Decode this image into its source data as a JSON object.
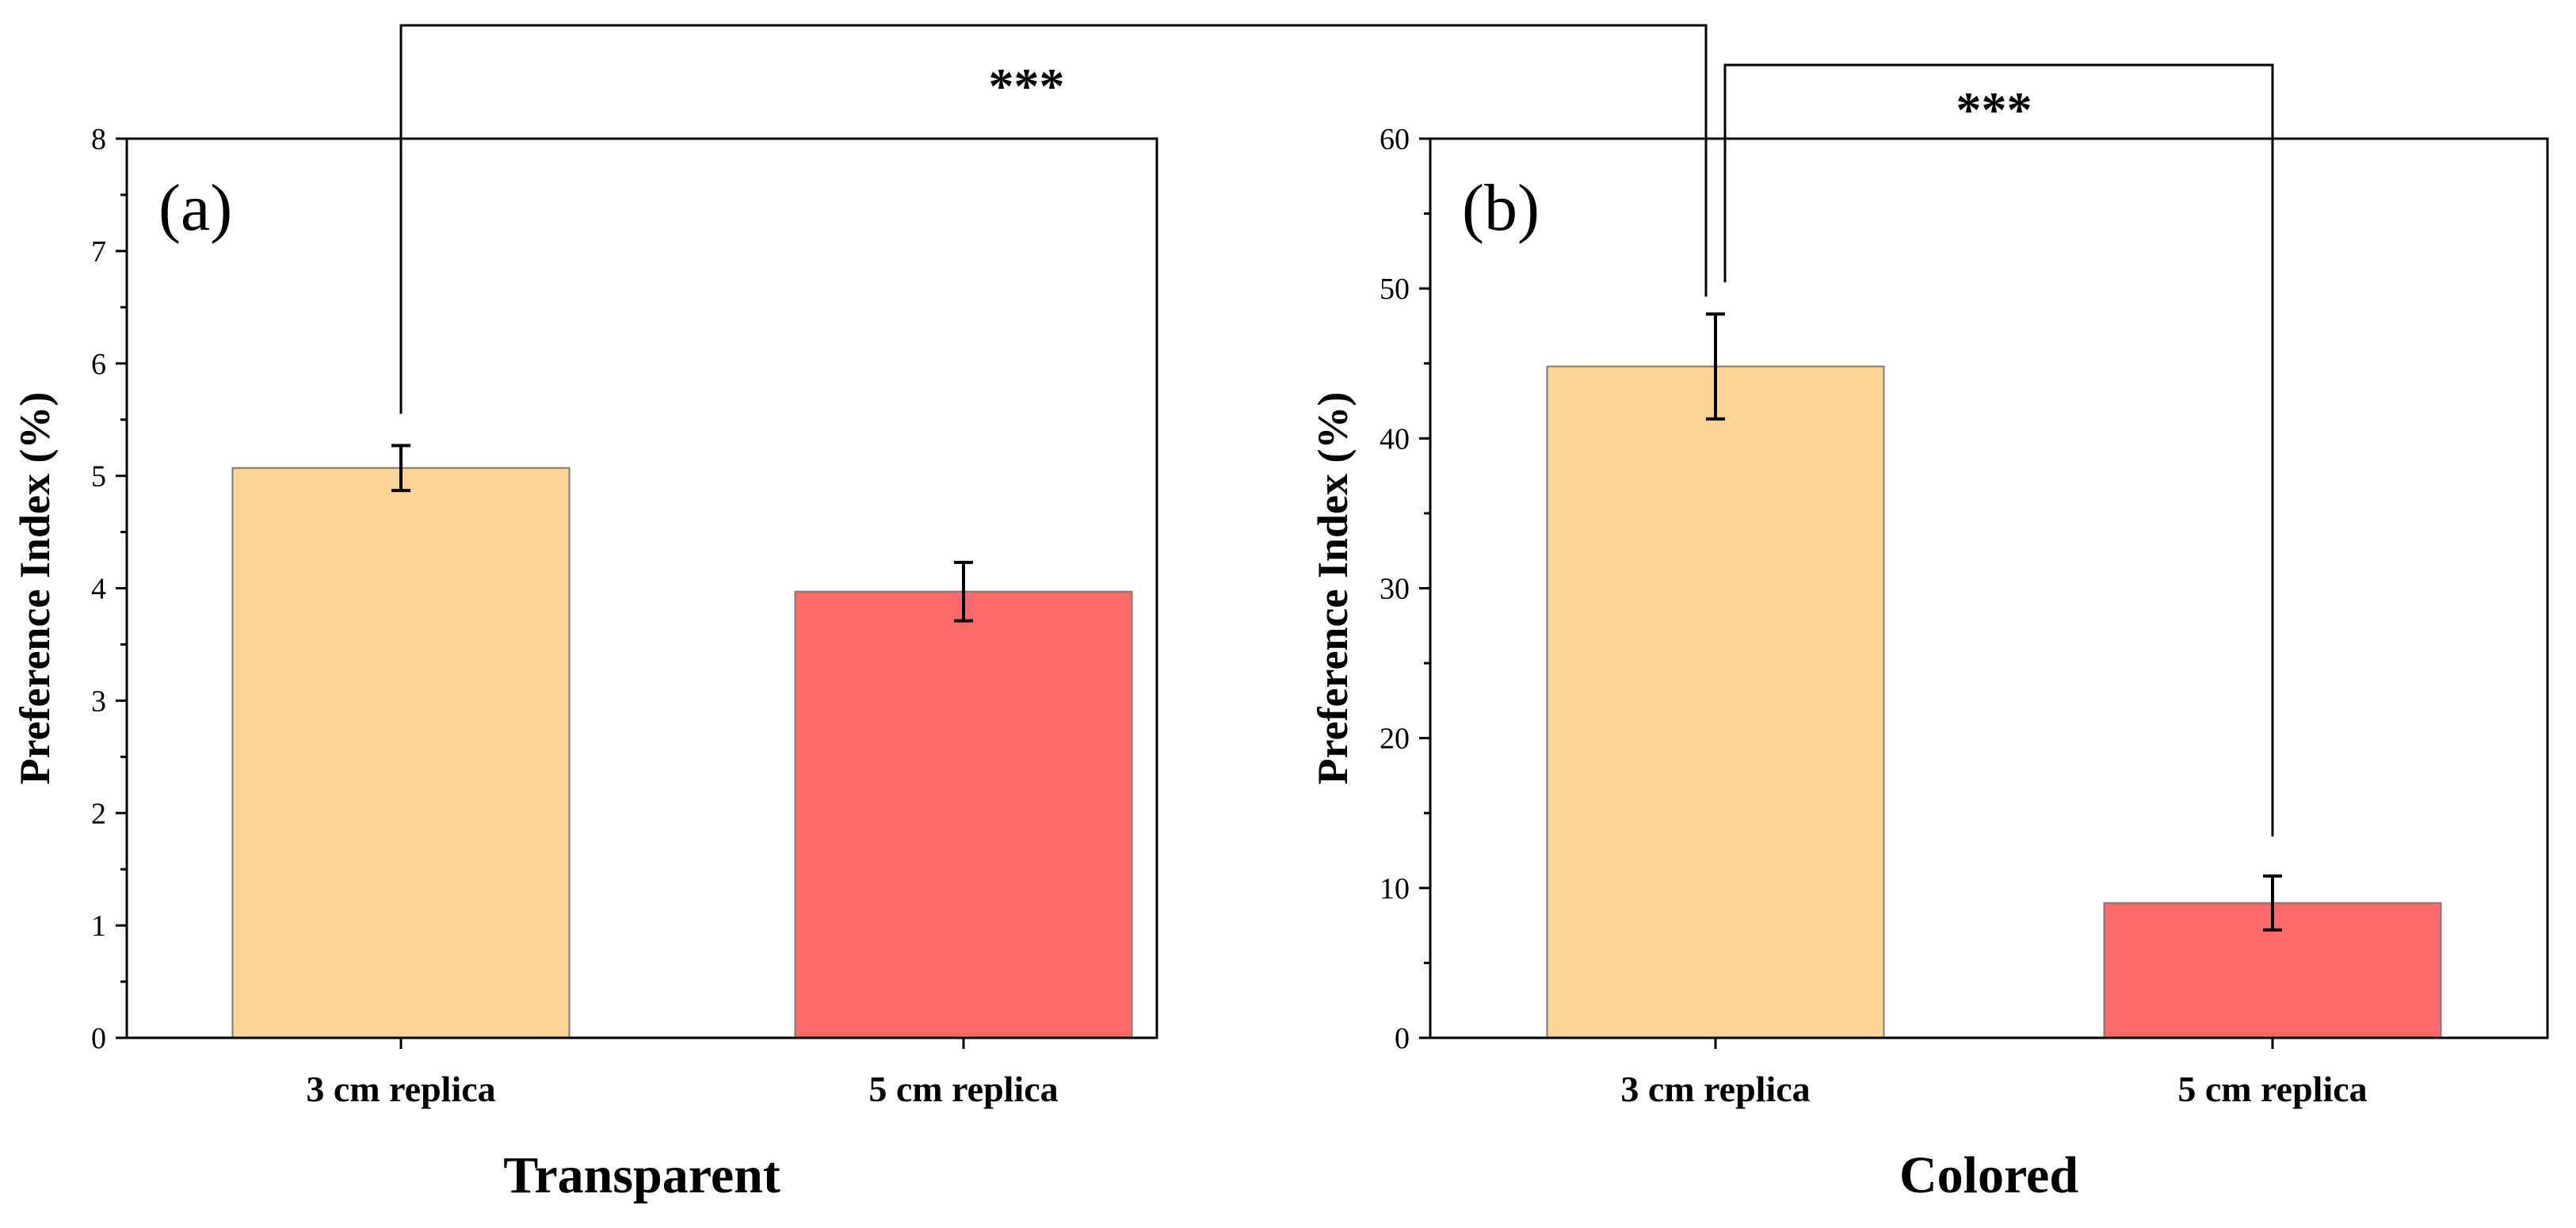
{
  "chart_data": [
    {
      "type": "bar",
      "panel_label": "(a)",
      "title": "Transparent",
      "ylabel": "Preference Index (%)",
      "xlabel": "",
      "ylim": [
        0,
        8
      ],
      "yticks": [
        0,
        1,
        2,
        3,
        4,
        5,
        6,
        7,
        8
      ],
      "categories": [
        "3 cm replica",
        "5 cm replica"
      ],
      "values": [
        5.07,
        3.97
      ],
      "errors": [
        0.2,
        0.26
      ],
      "colors": [
        "#FCD594",
        "#FF6B6B"
      ],
      "grid": false
    },
    {
      "type": "bar",
      "panel_label": "(b)",
      "title": "Colored",
      "ylabel": "Preference Index (%)",
      "xlabel": "",
      "ylim": [
        0,
        60
      ],
      "yticks": [
        0,
        10,
        20,
        30,
        40,
        50,
        60
      ],
      "categories": [
        "3 cm replica",
        "5 cm replica"
      ],
      "values": [
        44.8,
        9.0
      ],
      "errors": [
        3.5,
        1.8
      ],
      "colors": [
        "#FCD594",
        "#FF6B6B"
      ],
      "grid": false
    }
  ],
  "significance": [
    {
      "label": "***",
      "between": "a:3 cm replica vs b:3 cm replica"
    },
    {
      "label": "***",
      "between": "b:3 cm replica vs b:5 cm replica"
    }
  ]
}
